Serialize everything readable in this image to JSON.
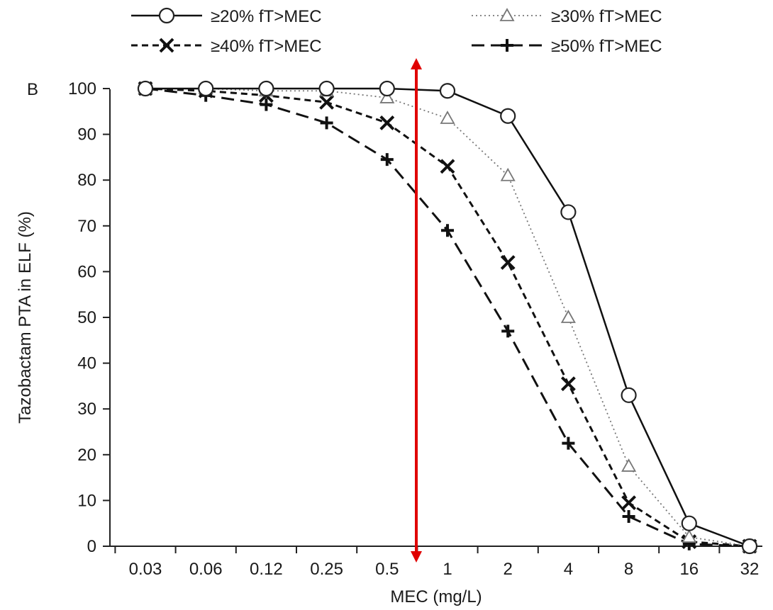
{
  "chart_data": {
    "type": "line",
    "panel_label": "B",
    "xlabel": "MEC (mg/L)",
    "ylabel": "Tazobactam PTA in ELF (%)",
    "ylim": [
      0,
      100
    ],
    "x_scale": "log2",
    "categories": [
      "0.03",
      "0.06",
      "0.12",
      "0.25",
      "0.5",
      "1",
      "2",
      "4",
      "8",
      "16",
      "32"
    ],
    "yticks": [
      "0",
      "10",
      "20",
      "30",
      "40",
      "50",
      "60",
      "70",
      "80",
      "90",
      "100"
    ],
    "grid": false,
    "legend_position": "top",
    "series": [
      {
        "name": "≥20% fT>MEC",
        "marker": "circle",
        "line_style": "solid",
        "values": [
          100,
          100,
          100,
          100,
          100,
          99.5,
          94,
          73,
          33,
          5,
          0
        ]
      },
      {
        "name": "≥30% fT>MEC",
        "marker": "triangle",
        "line_style": "dotted",
        "values": [
          100,
          100,
          99.5,
          99.5,
          98,
          93.5,
          81,
          50,
          17.5,
          2,
          0
        ]
      },
      {
        "name": "≥40% fT>MEC",
        "marker": "x",
        "line_style": "dashed",
        "values": [
          100,
          99.5,
          98.5,
          97,
          92.5,
          83,
          62,
          35.5,
          9.5,
          1,
          0
        ]
      },
      {
        "name": "≥50% fT>MEC",
        "marker": "plus",
        "line_style": "long-dash",
        "values": [
          100,
          98.5,
          96.5,
          92.5,
          84.5,
          69,
          47,
          22.5,
          6.5,
          0.5,
          0
        ]
      }
    ],
    "annotation": {
      "type": "vertical-double-arrow",
      "color": "#e00000",
      "x_between": [
        "0.5",
        "1"
      ]
    }
  }
}
